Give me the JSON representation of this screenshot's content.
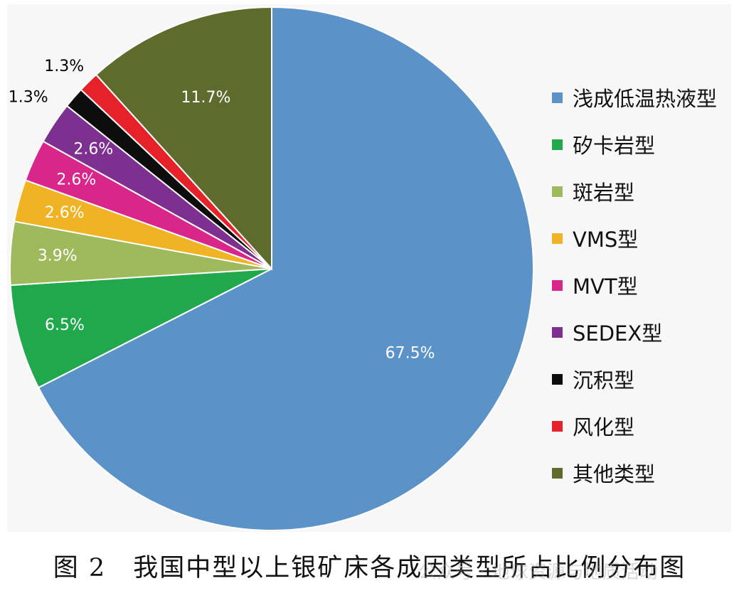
{
  "chart_data": {
    "type": "pie",
    "title": "",
    "slices": [
      {
        "label": "浅成低温热液型",
        "value": 67.5,
        "value_label": "67.5%",
        "color": "#5b93c8",
        "label_color": "#ffffff"
      },
      {
        "label": "矽卡岩型",
        "value": 6.5,
        "value_label": "6.5%",
        "color": "#21a84d",
        "label_color": "#ffffff"
      },
      {
        "label": "斑岩型",
        "value": 3.9,
        "value_label": "3.9%",
        "color": "#9fba5c",
        "label_color": "#ffffff"
      },
      {
        "label": "VMS型",
        "value": 2.6,
        "value_label": "2.6%",
        "color": "#f0b323",
        "label_color": "#ffffff"
      },
      {
        "label": "MVT型",
        "value": 2.6,
        "value_label": "2.6%",
        "color": "#d9268a",
        "label_color": "#ffffff"
      },
      {
        "label": "SEDEX型",
        "value": 2.6,
        "value_label": "2.6%",
        "color": "#7e3091",
        "label_color": "#ffffff"
      },
      {
        "label": "沉积型",
        "value": 1.3,
        "value_label": "1.3%",
        "color": "#0d0d0d",
        "label_color": "#000000"
      },
      {
        "label": "风化型",
        "value": 1.3,
        "value_label": "1.3%",
        "color": "#e62129",
        "label_color": "#000000"
      },
      {
        "label": "其他类型",
        "value": 11.7,
        "value_label": "11.7%",
        "color": "#5e6b2c",
        "label_color": "#ffffff"
      }
    ],
    "start": "12 o'clock",
    "direction": "clockwise",
    "legend_position": "right"
  },
  "caption": {
    "number": "图 2",
    "text": "我国中型以上银矿床各成因类型所占比例分布图"
  },
  "watermark": "公众号 · 地球资源与地质活动"
}
